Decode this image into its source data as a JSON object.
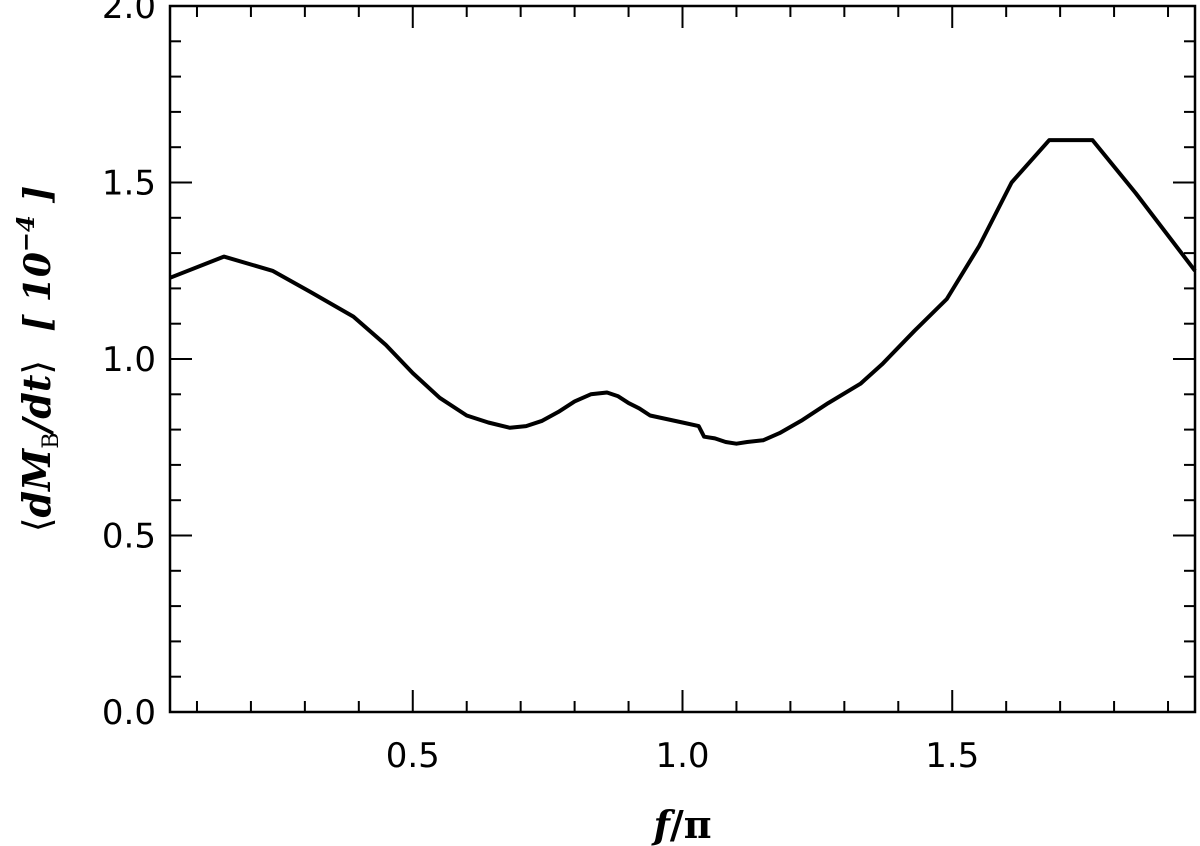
{
  "chart_data": {
    "type": "line",
    "xlabel": {
      "main": "f",
      "rest": "/π"
    },
    "ylabel": {
      "open": "⟨",
      "main": "dM",
      "sub": "B",
      "rest": "/dt",
      "close": "⟩",
      "unit": "[ 10",
      "unit_exp": "−4",
      "unit_close": " ]"
    },
    "xlim": [
      0.05,
      1.95
    ],
    "ylim": [
      0.0,
      2.0
    ],
    "xticks_major": [
      0.5,
      1.0,
      1.5
    ],
    "xtick_labels": [
      "0.5",
      "1.0",
      "1.5"
    ],
    "yticks_major": [
      0.0,
      0.5,
      1.0,
      1.5,
      2.0
    ],
    "ytick_labels": [
      "0.0",
      "0.5",
      "1.0",
      "1.5",
      "2.0"
    ],
    "series": [
      {
        "color": "#000000",
        "x": [
          0.05,
          0.15,
          0.24,
          0.31,
          0.39,
          0.45,
          0.5,
          0.55,
          0.6,
          0.64,
          0.68,
          0.71,
          0.74,
          0.77,
          0.8,
          0.83,
          0.86,
          0.88,
          0.9,
          0.92,
          0.94,
          0.97,
          1.0,
          1.03,
          1.04,
          1.06,
          1.08,
          1.1,
          1.12,
          1.15,
          1.18,
          1.22,
          1.27,
          1.33,
          1.37,
          1.43,
          1.49,
          1.55,
          1.61,
          1.68,
          1.76,
          1.84,
          1.95
        ],
        "y": [
          1.23,
          1.29,
          1.25,
          1.19,
          1.12,
          1.04,
          0.96,
          0.89,
          0.84,
          0.82,
          0.805,
          0.81,
          0.825,
          0.85,
          0.88,
          0.9,
          0.905,
          0.895,
          0.875,
          0.86,
          0.84,
          0.83,
          0.82,
          0.81,
          0.78,
          0.775,
          0.765,
          0.76,
          0.765,
          0.77,
          0.79,
          0.825,
          0.875,
          0.93,
          0.985,
          1.08,
          1.17,
          1.32,
          1.5,
          1.62,
          1.62,
          1.47,
          1.25
        ]
      }
    ],
    "grid": false
  }
}
